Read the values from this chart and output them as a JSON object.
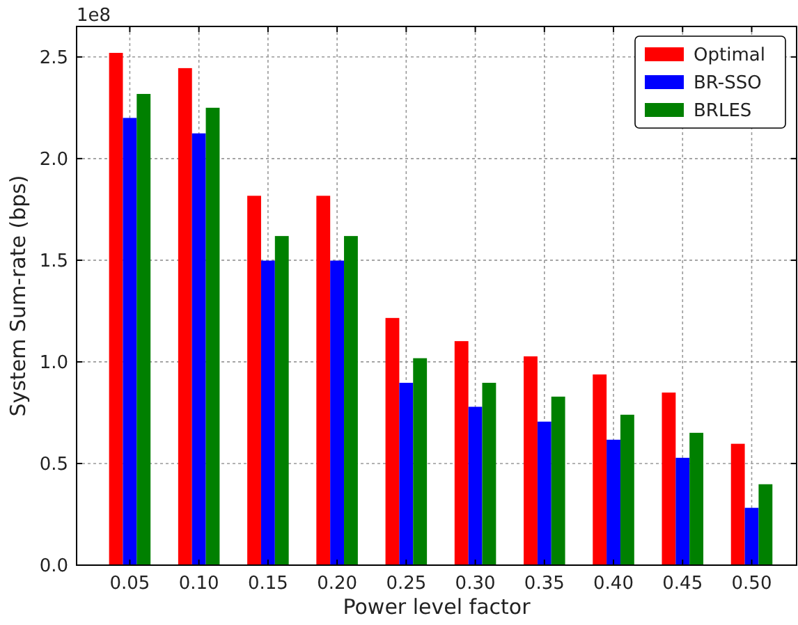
{
  "chart_data": {
    "type": "bar",
    "xlabel": "Power level factor",
    "ylabel": "System Sum-rate (bps)",
    "annotations": [
      "1e8"
    ],
    "categories": [
      "0.05",
      "0.10",
      "0.15",
      "0.20",
      "0.25",
      "0.30",
      "0.35",
      "0.40",
      "0.45",
      "0.50"
    ],
    "series": [
      {
        "name": "Optimal",
        "color": "#ff0000",
        "values": [
          2.52,
          2.445,
          1.817,
          1.817,
          1.216,
          1.102,
          1.027,
          0.938,
          0.849,
          0.597
        ]
      },
      {
        "name": "BR-SSO",
        "color": "#0000ff",
        "values": [
          2.2,
          2.124,
          1.498,
          1.498,
          0.897,
          0.779,
          0.706,
          0.617,
          0.528,
          0.282
        ]
      },
      {
        "name": "BRLES",
        "color": "#008000",
        "values": [
          2.318,
          2.25,
          1.619,
          1.619,
          1.018,
          0.897,
          0.829,
          0.74,
          0.651,
          0.398
        ]
      }
    ],
    "ylim": [
      0,
      2.65
    ],
    "yticks": [
      {
        "value": 0,
        "label": "0.0"
      },
      {
        "value": 0.5,
        "label": "0.5"
      },
      {
        "value": 1,
        "label": "1.0"
      },
      {
        "value": 1.5,
        "label": "1.5"
      },
      {
        "value": 2,
        "label": "2.0"
      },
      {
        "value": 2.5,
        "label": "2.5"
      }
    ],
    "grid": true,
    "legend": "top right"
  }
}
